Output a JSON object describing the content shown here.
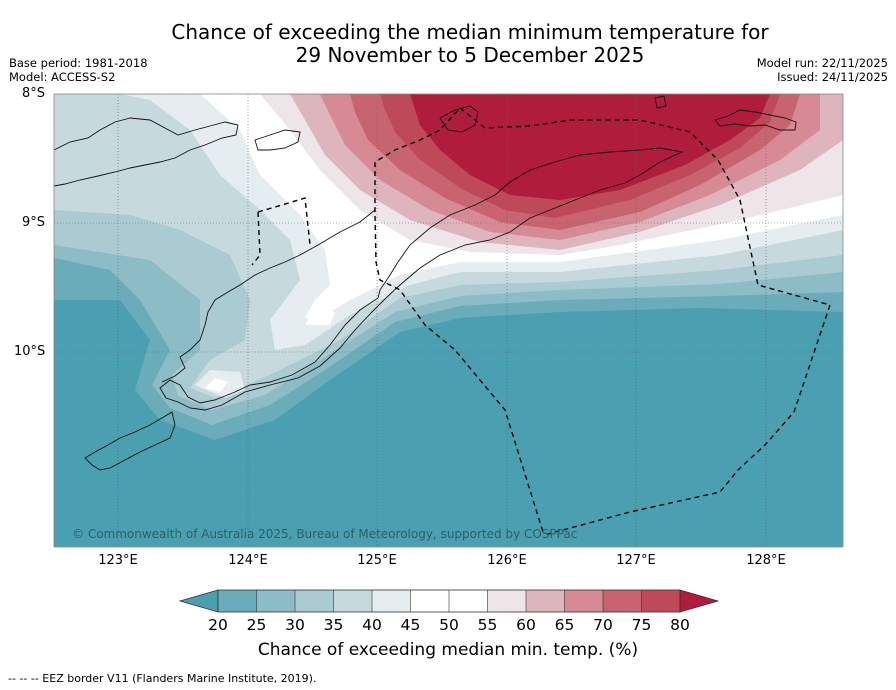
{
  "title_line1": "Chance of exceeding the median minimum temperature for",
  "title_line2": "29 November to 5 December 2025",
  "base_period": "Base period: 1981-2018",
  "model": "Model: ACCESS-S2",
  "model_run": "Model run: 22/11/2025",
  "issued": "Issued: 24/11/2025",
  "lat_labels": [
    "8°S",
    "9°S",
    "10°S"
  ],
  "lon_labels": [
    "123°E",
    "124°E",
    "125°E",
    "126°E",
    "127°E",
    "128°E"
  ],
  "copyright": "© Commonwealth of Australia 2025, Bureau of Meteorology, supported by COSPPac",
  "colorbar": {
    "ticks": [
      "20",
      "25",
      "30",
      "35",
      "40",
      "45",
      "50",
      "55",
      "60",
      "65",
      "70",
      "75",
      "80"
    ],
    "colors": [
      "#4aa0b0",
      "#6aacba",
      "#8cbcc6",
      "#aacbd1",
      "#c6d9dc",
      "#e6edf0",
      "#ffffff",
      "#ffffff",
      "#ede5e8",
      "#deb5bd",
      "#d58a94",
      "#c86470",
      "#be4a59",
      "#b01c3c"
    ],
    "label": "Chance of exceeding median min. temp. (%)"
  },
  "footer": "--  --  -- EEZ border V11 (Flanders Marine Institute, 2019)."
}
